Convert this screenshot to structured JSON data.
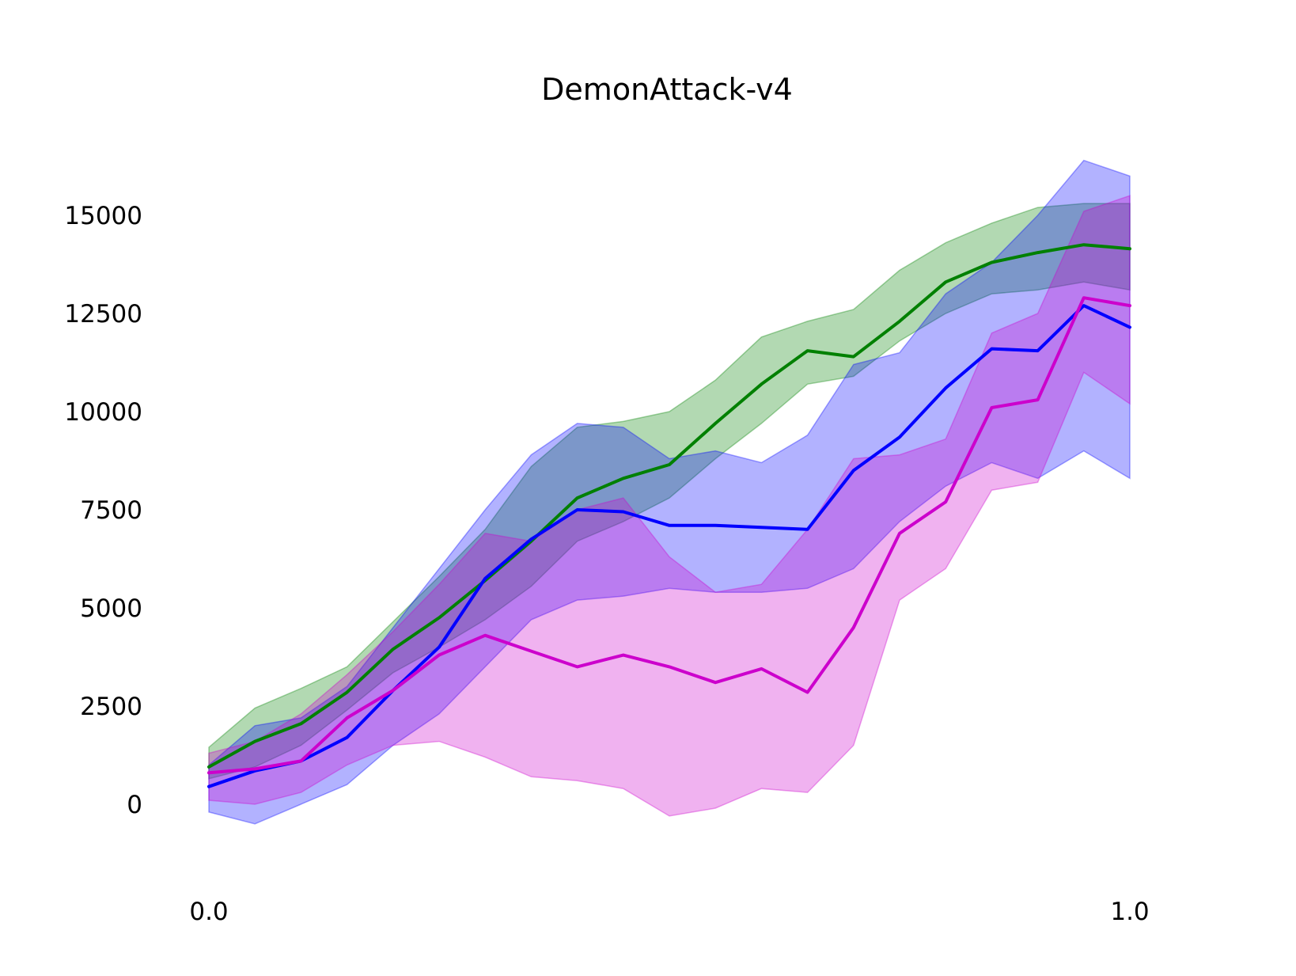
{
  "chart_data": {
    "type": "line",
    "title": "DemonAttack-v4",
    "xlabel": "",
    "ylabel": "",
    "xlim": [
      0.0,
      1.0
    ],
    "ylim": [
      -2000,
      17500
    ],
    "x_ticks": [
      {
        "value": 0.0,
        "label": "0.0"
      },
      {
        "value": 1.0,
        "label": "1.0"
      }
    ],
    "y_ticks": [
      {
        "value": 0,
        "label": "0"
      },
      {
        "value": 2500,
        "label": "2500"
      },
      {
        "value": 5000,
        "label": "5000"
      },
      {
        "value": 7500,
        "label": "7500"
      },
      {
        "value": 10000,
        "label": "10000"
      },
      {
        "value": 12500,
        "label": "12500"
      },
      {
        "value": 15000,
        "label": "15000"
      }
    ],
    "grid": false,
    "legend": null,
    "x": [
      0.0,
      0.05,
      0.1,
      0.15,
      0.2,
      0.25,
      0.3,
      0.35,
      0.4,
      0.45,
      0.5,
      0.55,
      0.6,
      0.65,
      0.7,
      0.75,
      0.8,
      0.85,
      0.9,
      0.95,
      1.0
    ],
    "series": [
      {
        "color": "#008000",
        "values": [
          950,
          1600,
          2050,
          2850,
          3950,
          4750,
          5700,
          6700,
          7800,
          8300,
          8650,
          9700,
          10700,
          11550,
          11400,
          12300,
          13300,
          13800,
          14050,
          14250,
          14150
        ],
        "band_upper": [
          1450,
          2450,
          2950,
          3500,
          4650,
          5800,
          7000,
          8600,
          9600,
          9750,
          10000,
          10800,
          11900,
          12300,
          12600,
          13600,
          14300,
          14800,
          15200,
          15300,
          15300
        ],
        "band_lower": [
          650,
          950,
          1500,
          2400,
          3350,
          4000,
          4700,
          5550,
          6700,
          7200,
          7800,
          8800,
          9700,
          10700,
          10900,
          11800,
          12500,
          13000,
          13100,
          13300,
          13100
        ]
      },
      {
        "color": "#0000ff",
        "values": [
          450,
          850,
          1100,
          1700,
          2900,
          4000,
          5750,
          6750,
          7500,
          7450,
          7100,
          7100,
          7050,
          7000,
          8500,
          9350,
          10600,
          11600,
          11550,
          12700,
          12150
        ],
        "band_upper": [
          1000,
          2000,
          2200,
          3000,
          4500,
          6000,
          7500,
          8900,
          9700,
          9600,
          8800,
          9000,
          8700,
          9400,
          11200,
          11500,
          13000,
          13800,
          15000,
          16400,
          16000
        ],
        "band_lower": [
          -200,
          -500,
          0,
          500,
          1500,
          2300,
          3500,
          4700,
          5200,
          5300,
          5500,
          5400,
          5400,
          5500,
          6000,
          7200,
          8100,
          8700,
          8300,
          9000,
          8300
        ]
      },
      {
        "color": "#cc00cc",
        "values": [
          800,
          900,
          1100,
          2200,
          2900,
          3800,
          4300,
          3900,
          3500,
          3800,
          3500,
          3100,
          3450,
          2850,
          4500,
          6900,
          7700,
          10100,
          10300,
          12900,
          12700
        ],
        "band_upper": [
          1300,
          1600,
          2300,
          3300,
          4400,
          5600,
          6900,
          6700,
          7500,
          7800,
          6300,
          5400,
          5600,
          7000,
          8800,
          8900,
          9300,
          12000,
          12500,
          15100,
          15500
        ],
        "band_lower": [
          100,
          0,
          300,
          1000,
          1500,
          1600,
          1200,
          700,
          600,
          400,
          -300,
          -100,
          400,
          300,
          1500,
          5200,
          6000,
          8000,
          8200,
          11000,
          10200
        ]
      }
    ]
  }
}
